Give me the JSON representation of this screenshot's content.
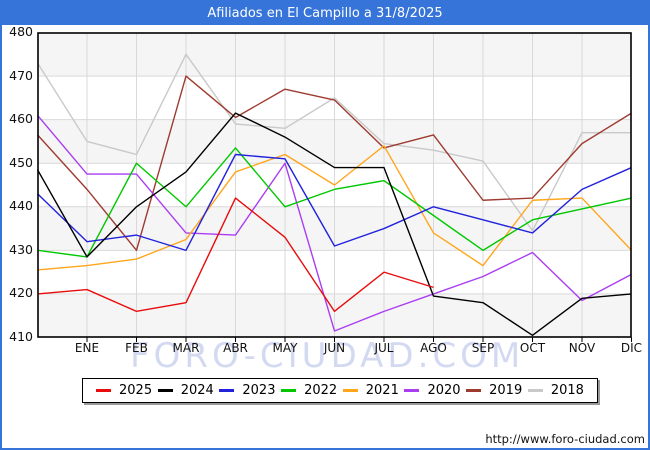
{
  "title_bar": {
    "title": "Afiliados en El Campillo a 31/8/2025"
  },
  "watermark": "FORO-CIUDAD.COM",
  "footer": {
    "url": "http://www.foro-ciudad.com"
  },
  "colors": {
    "frame_blue": "#3674d9",
    "band_gray": "#f5f5f5",
    "grid_gray": "#d9d9d9",
    "plot_border": "#000000"
  },
  "chart_data": {
    "type": "line",
    "title": "Afiliados en El Campillo a 31/8/2025",
    "categories": [
      "",
      "ENE",
      "FEB",
      "MAR",
      "ABR",
      "MAY",
      "JUN",
      "JUL",
      "AGO",
      "SEP",
      "OCT",
      "NOV",
      "DIC"
    ],
    "ylim": [
      410,
      480
    ],
    "yticks": [
      480,
      470,
      460,
      450,
      440,
      430,
      420,
      410
    ],
    "grid": true,
    "legend_position": "bottom",
    "series": [
      {
        "name": "2025",
        "color": "#e80c0c",
        "values": [
          420,
          421,
          416,
          418,
          442,
          433,
          416,
          425,
          421.5,
          null,
          null,
          null,
          null
        ]
      },
      {
        "name": "2024",
        "color": "#000000",
        "values": [
          448.5,
          428.5,
          440,
          448,
          461.5,
          456,
          449,
          449,
          419.5,
          418,
          410.5,
          419,
          420
        ]
      },
      {
        "name": "2023",
        "color": "#2222dd",
        "values": [
          443,
          432,
          433.5,
          430,
          452,
          451,
          431,
          435,
          440,
          437,
          434,
          444,
          449
        ]
      },
      {
        "name": "2022",
        "color": "#00c800",
        "values": [
          430,
          428.5,
          450,
          440,
          453.5,
          440,
          444,
          446,
          438,
          430,
          437,
          439.5,
          442
        ]
      },
      {
        "name": "2021",
        "color": "#ffa61c",
        "values": [
          425.5,
          426.5,
          428,
          432.5,
          448,
          452,
          445,
          454,
          434,
          426.5,
          441.5,
          442,
          430
        ]
      },
      {
        "name": "2020",
        "color": "#ab3df2",
        "values": [
          461,
          447.5,
          447.5,
          434,
          433.5,
          450,
          411.5,
          416,
          420,
          424,
          429.5,
          418.5,
          424.5
        ]
      },
      {
        "name": "2019",
        "color": "#9e3b31",
        "values": [
          456.5,
          444,
          430,
          470,
          460.5,
          467,
          464.5,
          453.5,
          456.5,
          441.5,
          442,
          454.5,
          461.5
        ]
      },
      {
        "name": "2018",
        "color": "#c9c9c9",
        "values": [
          473,
          455,
          452,
          475,
          459,
          458,
          465,
          454.5,
          453,
          450.5,
          434.5,
          457,
          457
        ]
      }
    ]
  }
}
